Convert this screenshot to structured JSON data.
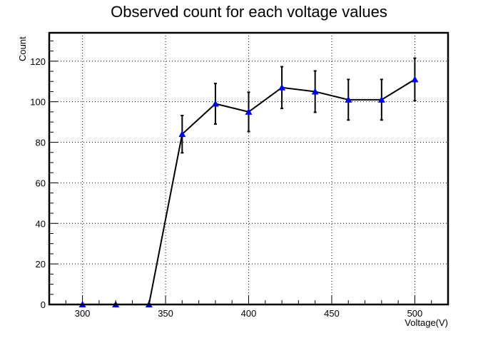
{
  "chart_data": {
    "type": "scatter",
    "title": "Observed count for each voltage values",
    "xlabel": "Voltage(V)",
    "ylabel": "Count",
    "xlim": [
      280,
      520
    ],
    "ylim": [
      0,
      134
    ],
    "grid": true,
    "x_ticks": [
      300,
      350,
      400,
      450,
      500
    ],
    "y_ticks": [
      0,
      20,
      40,
      60,
      80,
      100,
      120
    ],
    "marker_color": "#0000ff",
    "line_color": "#000000",
    "series": [
      {
        "x": [
          300,
          320,
          340,
          360,
          380,
          400,
          420,
          440,
          460,
          480,
          500
        ],
        "y": [
          0,
          0,
          0,
          84,
          99,
          95,
          107,
          105,
          101,
          101,
          111
        ],
        "yerr": [
          0,
          0,
          0,
          9.2,
          10,
          9.7,
          10.3,
          10.2,
          10,
          10,
          10.5
        ]
      }
    ]
  }
}
